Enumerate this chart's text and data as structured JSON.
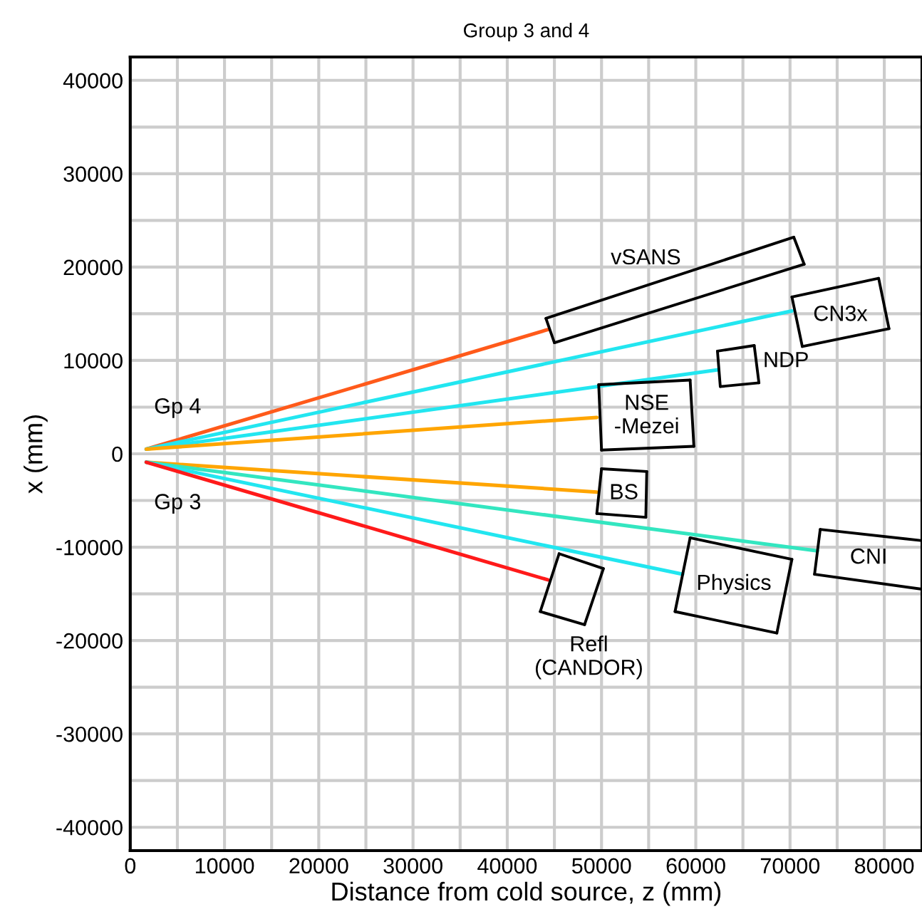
{
  "chart_data": {
    "type": "line",
    "title": "Group 3 and 4",
    "xlabel": "Distance from cold source, z (mm)",
    "ylabel": "x (mm)",
    "xlim": [
      0,
      84000
    ],
    "ylim": [
      -42500,
      42500
    ],
    "xticks": [
      0,
      {
        "value": 5000,
        "label": null
      },
      10000,
      {
        "value": 15000,
        "label": null
      },
      20000,
      {
        "value": 25000,
        "label": null
      },
      30000,
      {
        "value": 35000,
        "label": null
      },
      40000,
      {
        "value": 45000,
        "label": null
      },
      50000,
      {
        "value": 55000,
        "label": null
      },
      60000,
      {
        "value": 65000,
        "label": null
      },
      70000,
      {
        "value": 75000,
        "label": null
      },
      80000
    ],
    "yticks": [
      -40000,
      {
        "value": -35000,
        "label": null
      },
      -30000,
      {
        "value": -25000,
        "label": null
      },
      -20000,
      {
        "value": -15000,
        "label": null
      },
      -10000,
      {
        "value": -5000,
        "label": null
      },
      0,
      {
        "value": 5000,
        "label": null
      },
      10000,
      {
        "value": 15000,
        "label": null
      },
      20000,
      {
        "value": 25000,
        "label": null
      },
      30000,
      {
        "value": 35000,
        "label": null
      },
      40000
    ],
    "grid": true,
    "line_style": "solid",
    "marker": "none",
    "series": [
      {
        "color": "#ff5a1a",
        "x": [
          1700,
          44300
        ],
        "values": [
          500,
          13300
        ]
      },
      {
        "color": "#22e6f0",
        "x": [
          1700,
          70200
        ],
        "values": [
          500,
          15300
        ]
      },
      {
        "color": "#22e6f0",
        "x": [
          1700,
          62400
        ],
        "values": [
          500,
          9000
        ]
      },
      {
        "color": "#ffa500",
        "x": [
          1700,
          49500
        ],
        "values": [
          500,
          3900
        ]
      },
      {
        "color": "#ffa500",
        "x": [
          1700,
          49500
        ],
        "values": [
          -900,
          -4100
        ]
      },
      {
        "color": "#33e6c0",
        "x": [
          1700,
          72900
        ],
        "values": [
          -900,
          -10400
        ]
      },
      {
        "color": "#22e6f0",
        "x": [
          1700,
          58600
        ],
        "values": [
          -900,
          -12900
        ]
      },
      {
        "color": "#ff1a1a",
        "x": [
          1700,
          44300
        ],
        "values": [
          -900,
          -13500
        ]
      },
      {
        "color": "#000000",
        "x": [
          44100,
          70400
        ],
        "values": [
          14500,
          23200
        ]
      },
      {
        "color": "#000000",
        "x": [
          70400,
          71500
        ],
        "values": [
          23200,
          20300
        ]
      },
      {
        "color": "#000000",
        "x": [
          45000,
          71500
        ],
        "values": [
          11900,
          20300
        ]
      },
      {
        "color": "#000000",
        "x": [
          44100,
          45000
        ],
        "values": [
          14500,
          11900
        ]
      },
      {
        "color": "#000000",
        "x": [
          70200,
          79400
        ],
        "values": [
          16800,
          18800
        ]
      },
      {
        "color": "#000000",
        "x": [
          79400,
          80500
        ],
        "values": [
          18800,
          13400
        ]
      },
      {
        "color": "#000000",
        "x": [
          71300,
          80500
        ],
        "values": [
          11500,
          13400
        ]
      },
      {
        "color": "#000000",
        "x": [
          70200,
          71300
        ],
        "values": [
          16800,
          11500
        ]
      },
      {
        "color": "#000000",
        "x": [
          62300,
          66200
        ],
        "values": [
          11000,
          11600
        ]
      },
      {
        "color": "#000000",
        "x": [
          66200,
          66700
        ],
        "values": [
          11600,
          7600
        ]
      },
      {
        "color": "#000000",
        "x": [
          62600,
          66700
        ],
        "values": [
          7200,
          7600
        ]
      },
      {
        "color": "#000000",
        "x": [
          62300,
          62600
        ],
        "values": [
          11000,
          7200
        ]
      },
      {
        "color": "#000000",
        "x": [
          49700,
          59400
        ],
        "values": [
          7400,
          7900
        ]
      },
      {
        "color": "#000000",
        "x": [
          59400,
          59800
        ],
        "values": [
          7900,
          800
        ]
      },
      {
        "color": "#000000",
        "x": [
          50000,
          59800
        ],
        "values": [
          400,
          800
        ]
      },
      {
        "color": "#000000",
        "x": [
          49700,
          50000
        ],
        "values": [
          7400,
          400
        ]
      },
      {
        "color": "#000000",
        "x": [
          50000,
          54800
        ],
        "values": [
          -1600,
          -1900
        ]
      },
      {
        "color": "#000000",
        "x": [
          54700,
          54800
        ],
        "values": [
          -6800,
          -1900
        ]
      },
      {
        "color": "#000000",
        "x": [
          49500,
          54700
        ],
        "values": [
          -6400,
          -6800
        ]
      },
      {
        "color": "#000000",
        "x": [
          49500,
          50000
        ],
        "values": [
          -6400,
          -1600
        ]
      },
      {
        "color": "#000000",
        "x": [
          73200,
          84000
        ],
        "values": [
          -8100,
          -9300
        ]
      },
      {
        "color": "#000000",
        "x": [
          72600,
          84000
        ],
        "values": [
          -12900,
          -14500
        ]
      },
      {
        "color": "#000000",
        "x": [
          72600,
          73200
        ],
        "values": [
          -12900,
          -8100
        ]
      },
      {
        "color": "#000000",
        "x": [
          59400,
          70200
        ],
        "values": [
          -9000,
          -11300
        ]
      },
      {
        "color": "#000000",
        "x": [
          68600,
          70200
        ],
        "values": [
          -19200,
          -11300
        ]
      },
      {
        "color": "#000000",
        "x": [
          57800,
          68600
        ],
        "values": [
          -16900,
          -19200
        ]
      },
      {
        "color": "#000000",
        "x": [
          57800,
          59400
        ],
        "values": [
          -16900,
          -9000
        ]
      },
      {
        "color": "#000000",
        "x": [
          45500,
          50200
        ],
        "values": [
          -10700,
          -12300
        ]
      },
      {
        "color": "#000000",
        "x": [
          48200,
          50200
        ],
        "values": [
          -18300,
          -12300
        ]
      },
      {
        "color": "#000000",
        "x": [
          43500,
          48200
        ],
        "values": [
          -16900,
          -18300
        ]
      },
      {
        "color": "#000000",
        "x": [
          43500,
          45500
        ],
        "values": [
          -16900,
          -10700
        ]
      }
    ],
    "annotations": [
      {
        "text": "vSANS",
        "x": 54700,
        "y": 18000
      },
      {
        "text": "CN3x",
        "x": 70200,
        "y": 15300
      },
      {
        "text": "NDP",
        "x": 66400,
        "y": 9900
      },
      {
        "text": "NSE\n-Mezei",
        "x": 49500,
        "y": 3900
      },
      {
        "text": "Gp 4",
        "x": 1700,
        "y": 500
      },
      {
        "text": "Gp 3",
        "x": 1700,
        "y": -900
      },
      {
        "text": "BS",
        "x": 49500,
        "y": -4100
      },
      {
        "text": "CNI",
        "x": 72900,
        "y": -10400
      },
      {
        "text": "Physics",
        "x": 58600,
        "y": -12900
      },
      {
        "text": "Refl\n(CANDOR)",
        "x": 48200,
        "y": -18300
      }
    ]
  }
}
